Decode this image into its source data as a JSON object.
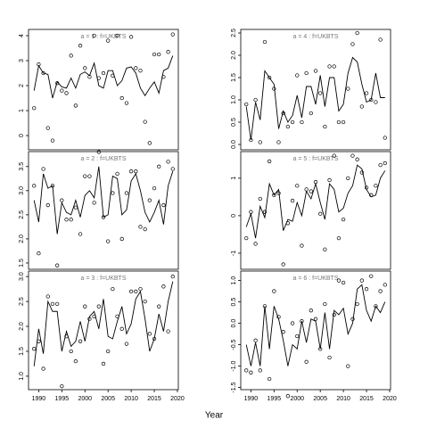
{
  "chart_data": [
    {
      "type": "line",
      "title": "a = 1 : f=UKBTS",
      "xlim": [
        1987.8,
        2020.2
      ],
      "ylim": [
        -0.57,
        4.25
      ],
      "yticks": [
        0,
        1,
        2,
        3,
        4
      ],
      "x": [
        1989,
        1990,
        1991,
        1992,
        1993,
        1994,
        1995,
        1996,
        1997,
        1998,
        1999,
        2000,
        2001,
        2002,
        2003,
        2004,
        2005,
        2006,
        2007,
        2008,
        2009,
        2010,
        2011,
        2012,
        2013,
        2014,
        2015,
        2016,
        2017,
        2018,
        2019
      ],
      "series": [
        {
          "style": "points",
          "color": "#000000",
          "values": [
            1.1,
            2.85,
            2.5,
            0.3,
            -0.2,
            2.1,
            1.8,
            1.7,
            3.2,
            1.2,
            3.6,
            2.7,
            2.35,
            4.0,
            2.3,
            2.5,
            3.8,
            2.4,
            4.0,
            1.5,
            1.3,
            3.95,
            2.7,
            2.6,
            0.55,
            -0.3,
            3.25,
            3.25,
            2.35,
            3.35,
            4.05
          ]
        },
        {
          "style": "line",
          "color": "#000000",
          "values": [
            1.8,
            2.8,
            2.5,
            2.45,
            1.5,
            2.15,
            1.95,
            1.9,
            2.3,
            1.9,
            2.45,
            2.55,
            2.4,
            2.9,
            2.0,
            1.9,
            2.6,
            2.6,
            2.0,
            2.2,
            2.7,
            2.75,
            2.5,
            1.9,
            1.6,
            1.9,
            2.15,
            1.7,
            2.6,
            2.7,
            3.2
          ]
        }
      ]
    },
    {
      "type": "line",
      "title": "a = 2 : f=UKBTS",
      "xlim": [
        1987.8,
        2020.2
      ],
      "ylim": [
        1.37,
        3.81
      ],
      "yticks": [
        1.5,
        {
          "value": 2,
          "label": "2.0"
        },
        2.5,
        {
          "value": 3,
          "label": "3.0"
        },
        3.5
      ],
      "x": [
        1989,
        1990,
        1991,
        1992,
        1993,
        1994,
        1995,
        1996,
        1997,
        1998,
        1999,
        2000,
        2001,
        2002,
        2003,
        2004,
        2005,
        2006,
        2007,
        2008,
        2009,
        2010,
        2011,
        2012,
        2013,
        2014,
        2015,
        2016,
        2017,
        2018,
        2019
      ],
      "series": [
        {
          "style": "points",
          "color": "#000000",
          "values": [
            3.1,
            1.7,
            3.45,
            2.7,
            3.1,
            1.45,
            2.8,
            2.4,
            2.4,
            2.65,
            2.1,
            3.3,
            3.3,
            2.75,
            3.8,
            2.45,
            1.95,
            2.95,
            3.35,
            2.0,
            2.95,
            3.4,
            3.4,
            2.25,
            2.2,
            2.8,
            3.05,
            3.5,
            2.7,
            3.6,
            3.45
          ]
        },
        {
          "style": "line",
          "color": "#000000",
          "values": [
            2.8,
            2.35,
            3.35,
            3.05,
            3.1,
            2.1,
            2.75,
            2.55,
            2.5,
            2.8,
            2.45,
            2.9,
            3.0,
            2.85,
            3.5,
            2.45,
            2.5,
            3.3,
            3.25,
            2.5,
            2.6,
            3.2,
            3.35,
            3.0,
            2.55,
            2.35,
            2.55,
            2.8,
            2.3,
            3.1,
            3.4
          ]
        }
      ]
    },
    {
      "type": "line",
      "title": "a = 3 : f=UKBTS",
      "xlim": [
        1987.8,
        2020.2
      ],
      "ylim": [
        0.73,
        3.11
      ],
      "yticks": [
        {
          "value": 1,
          "label": "1.0"
        },
        1.5,
        {
          "value": 2,
          "label": "2.0"
        },
        2.5,
        {
          "value": 3,
          "label": "3.0"
        }
      ],
      "xticks": [
        1990,
        1995,
        2000,
        2005,
        2010,
        2015,
        2020
      ],
      "x": [
        1989,
        1990,
        1991,
        1992,
        1993,
        1994,
        1995,
        1996,
        1997,
        1998,
        1999,
        2000,
        2001,
        2002,
        2003,
        2004,
        2005,
        2006,
        2007,
        2008,
        2009,
        2010,
        2011,
        2012,
        2013,
        2014,
        2015,
        2016,
        2017,
        2018,
        2019
      ],
      "series": [
        {
          "style": "points",
          "color": "#000000",
          "values": [
            1.55,
            1.7,
            1.15,
            2.6,
            2.45,
            2.45,
            0.8,
            1.8,
            1.5,
            1.3,
            1.7,
            2.4,
            2.15,
            2.2,
            2.4,
            1.25,
            1.5,
            2.75,
            2.2,
            1.95,
            1.65,
            2.7,
            2.7,
            2.75,
            2.5,
            1.85,
            1.75,
            2.4,
            2.8,
            1.9,
            3.0
          ]
        },
        {
          "style": "line",
          "color": "#000000",
          "values": [
            1.2,
            1.95,
            1.45,
            2.5,
            2.3,
            2.3,
            1.5,
            1.9,
            1.6,
            1.7,
            2.1,
            1.7,
            2.2,
            2.3,
            1.95,
            2.55,
            1.8,
            1.75,
            2.1,
            2.4,
            1.85,
            2.05,
            2.55,
            2.7,
            2.15,
            1.5,
            1.75,
            2.25,
            1.9,
            2.5,
            2.9
          ]
        }
      ]
    },
    {
      "type": "line",
      "title": "a = 4 : f=UKBTS",
      "xlim": [
        1987.8,
        2020.2
      ],
      "ylim": [
        -0.12,
        2.58
      ],
      "yticks": [
        {
          "value": 0,
          "label": "0.0"
        },
        0.5,
        {
          "value": 1,
          "label": "1.0"
        },
        1.5,
        {
          "value": 2,
          "label": "2.0"
        },
        2.5
      ],
      "x": [
        1989,
        1990,
        1991,
        1992,
        1993,
        1994,
        1995,
        1996,
        1997,
        1998,
        1999,
        2000,
        2001,
        2002,
        2003,
        2004,
        2005,
        2006,
        2007,
        2008,
        2009,
        2010,
        2011,
        2012,
        2013,
        2014,
        2015,
        2016,
        2017,
        2018,
        2019
      ],
      "series": [
        {
          "style": "points",
          "color": "#000000",
          "values": [
            0.9,
            0.1,
            1.0,
            0.05,
            2.3,
            1.5,
            1.25,
            0.05,
            0.7,
            0.4,
            0.5,
            1.55,
            0.5,
            1.6,
            0.7,
            1.65,
            1.15,
            0.4,
            1.75,
            1.75,
            0.5,
            0.5,
            1.25,
            2.25,
            2.5,
            0.85,
            1.15,
            1.0,
            0.95,
            2.35,
            0.15
          ]
        },
        {
          "style": "line",
          "color": "#000000",
          "values": [
            0.85,
            0.1,
            0.95,
            0.55,
            1.65,
            1.5,
            1.35,
            0.35,
            0.75,
            0.5,
            0.65,
            1.1,
            0.6,
            1.3,
            1.3,
            0.9,
            1.55,
            0.85,
            1.5,
            1.5,
            0.75,
            0.9,
            1.6,
            1.95,
            1.85,
            1.35,
            0.95,
            1.0,
            1.6,
            1.05,
            1.05
          ]
        }
      ]
    },
    {
      "type": "line",
      "title": "a = 5 : f=UKBTS",
      "xlim": [
        1987.8,
        2020.2
      ],
      "ylim": [
        -1.43,
        1.71
      ],
      "yticks": [
        -1,
        0,
        1
      ],
      "x": [
        1989,
        1990,
        1991,
        1992,
        1993,
        1994,
        1995,
        1996,
        1997,
        1998,
        1999,
        2000,
        2001,
        2002,
        2003,
        2004,
        2005,
        2006,
        2007,
        2008,
        2009,
        2010,
        2011,
        2012,
        2013,
        2014,
        2015,
        2016,
        2017,
        2018,
        2019
      ],
      "series": [
        {
          "style": "points",
          "color": "#000000",
          "values": [
            -0.6,
            0.1,
            -0.75,
            0.45,
            0.1,
            1.45,
            0.55,
            0.6,
            -1.3,
            -0.2,
            0.4,
            0.8,
            -0.8,
            0.7,
            0.65,
            0.9,
            0.05,
            -0.9,
            0.95,
            1.6,
            -0.6,
            -0.1,
            1.0,
            1.6,
            1.5,
            1.15,
            0.75,
            0.55,
            0.8,
            1.35,
            1.4
          ]
        },
        {
          "style": "line",
          "color": "#000000",
          "values": [
            -0.3,
            0.05,
            -0.6,
            0.25,
            -0.05,
            0.85,
            0.55,
            0.7,
            -0.4,
            -0.1,
            -0.15,
            0.35,
            0.0,
            0.65,
            0.45,
            0.85,
            0.35,
            -0.1,
            0.85,
            0.7,
            0.1,
            0.2,
            0.6,
            0.8,
            1.35,
            1.25,
            0.7,
            0.5,
            0.55,
            1.0,
            1.2
          ]
        }
      ]
    },
    {
      "type": "line",
      "title": "a = 6 : f=UKBTS",
      "xlim": [
        1987.8,
        2020.2
      ],
      "ylim": [
        -1.55,
        1.22
      ],
      "yticks": [
        -1.5,
        {
          "value": -1,
          "label": "-1.0"
        },
        -0.5,
        {
          "value": 0,
          "label": "0.0"
        },
        0.5,
        {
          "value": 1,
          "label": "1.0"
        }
      ],
      "xticks": [
        1990,
        1995,
        2000,
        2005,
        2010,
        2015,
        2020
      ],
      "x": [
        1989,
        1990,
        1991,
        1992,
        1993,
        1994,
        1995,
        1996,
        1997,
        1998,
        1999,
        2000,
        2001,
        2002,
        2003,
        2004,
        2005,
        2006,
        2007,
        2008,
        2009,
        2010,
        2011,
        2012,
        2013,
        2014,
        2015,
        2016,
        2017,
        2018,
        2019
      ],
      "series": [
        {
          "style": "points",
          "color": "#000000",
          "values": [
            -1.1,
            -1.15,
            -0.4,
            -1.1,
            0.4,
            -1.3,
            0.75,
            0.15,
            -0.2,
            -1.7,
            0.0,
            -0.3,
            0.05,
            -0.9,
            0.3,
            0.1,
            -0.6,
            0.45,
            -0.8,
            0.2,
            1.0,
            0.95,
            -1.0,
            0.1,
            0.45,
            1.0,
            0.8,
            1.1,
            0.4,
            0.75,
            0.9
          ]
        },
        {
          "style": "line",
          "color": "#000000",
          "values": [
            -0.5,
            -1.0,
            -0.45,
            -1.0,
            0.4,
            -0.6,
            0.4,
            0.1,
            -0.4,
            -1.0,
            -0.5,
            -0.6,
            0.05,
            -0.45,
            0.1,
            0.05,
            -0.6,
            0.25,
            -0.6,
            0.3,
            0.2,
            0.35,
            -0.25,
            0.0,
            0.8,
            0.9,
            0.3,
            0.05,
            0.4,
            0.25,
            0.5
          ]
        }
      ]
    }
  ],
  "xlabel": "Year"
}
